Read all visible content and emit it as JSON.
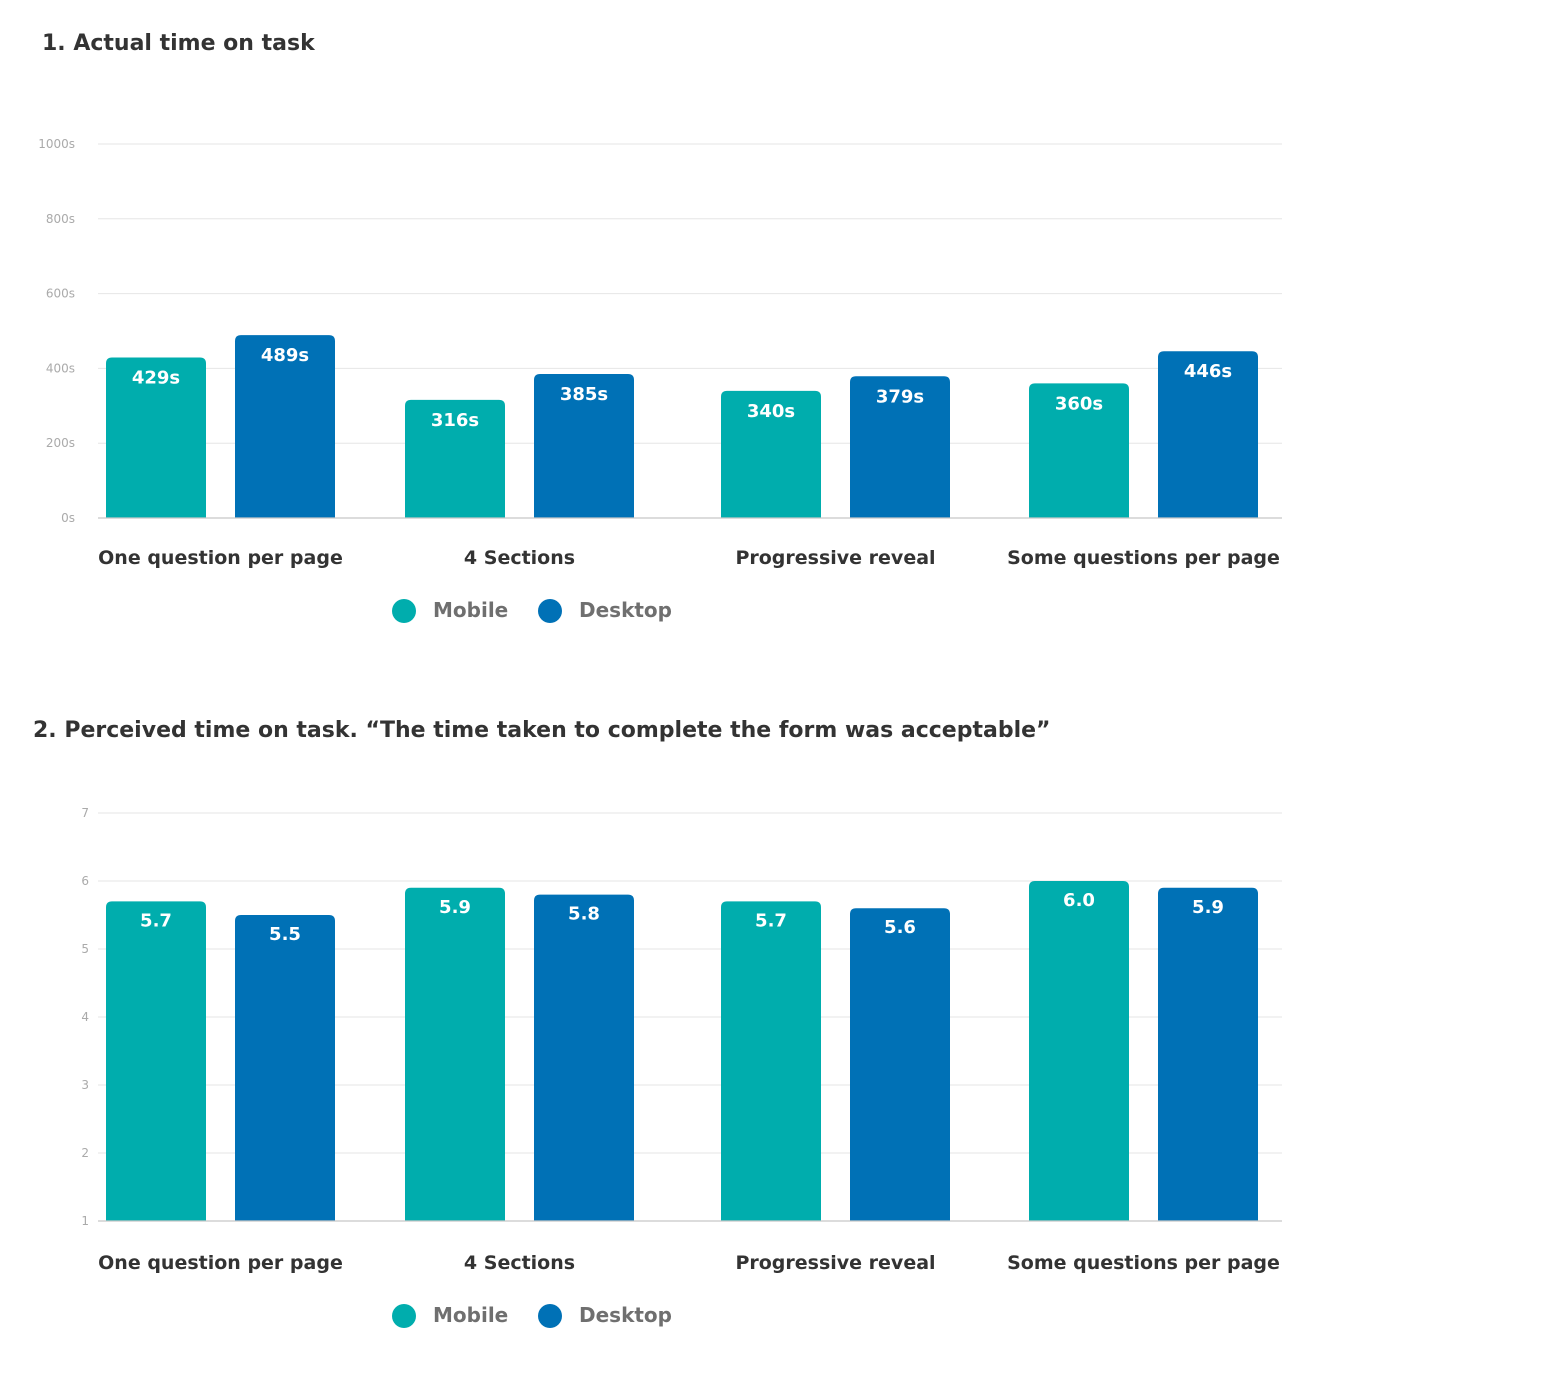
{
  "colors": {
    "mobile": "#00adad",
    "desktop": "#0071b6"
  },
  "chart_data": [
    {
      "type": "bar",
      "title": "1. Actual time on task",
      "categories": [
        "One question per page",
        "4 Sections",
        "Progressive reveal",
        "Some questions per page"
      ],
      "series": [
        {
          "name": "Mobile",
          "values": [
            429,
            316,
            340,
            360
          ],
          "labels": [
            "429s",
            "316s",
            "340s",
            "360s"
          ]
        },
        {
          "name": "Desktop",
          "values": [
            489,
            385,
            379,
            446
          ],
          "labels": [
            "489s",
            "385s",
            "379s",
            "446s"
          ]
        }
      ],
      "y_ticks": [
        "0s",
        "200s",
        "400s",
        "600s",
        "800s",
        "1000s"
      ],
      "ylim": [
        0,
        1000
      ],
      "grid": true,
      "legend": "bottom"
    },
    {
      "type": "bar",
      "title": "2. Perceived time on task. “The time taken to complete the form was acceptable”",
      "categories": [
        "One question per page",
        "4 Sections",
        "Progressive reveal",
        "Some questions per page"
      ],
      "series": [
        {
          "name": "Mobile",
          "values": [
            5.7,
            5.9,
            5.7,
            6.0
          ],
          "labels": [
            "5.7",
            "5.9",
            "5.7",
            "6.0"
          ]
        },
        {
          "name": "Desktop",
          "values": [
            5.5,
            5.8,
            5.6,
            5.9
          ],
          "labels": [
            "5.5",
            "5.8",
            "5.6",
            "5.9"
          ]
        }
      ],
      "y_ticks": [
        "1",
        "2",
        "3",
        "4",
        "5",
        "6",
        "7"
      ],
      "ylim": [
        1,
        7
      ],
      "grid": true,
      "legend": "bottom"
    }
  ]
}
